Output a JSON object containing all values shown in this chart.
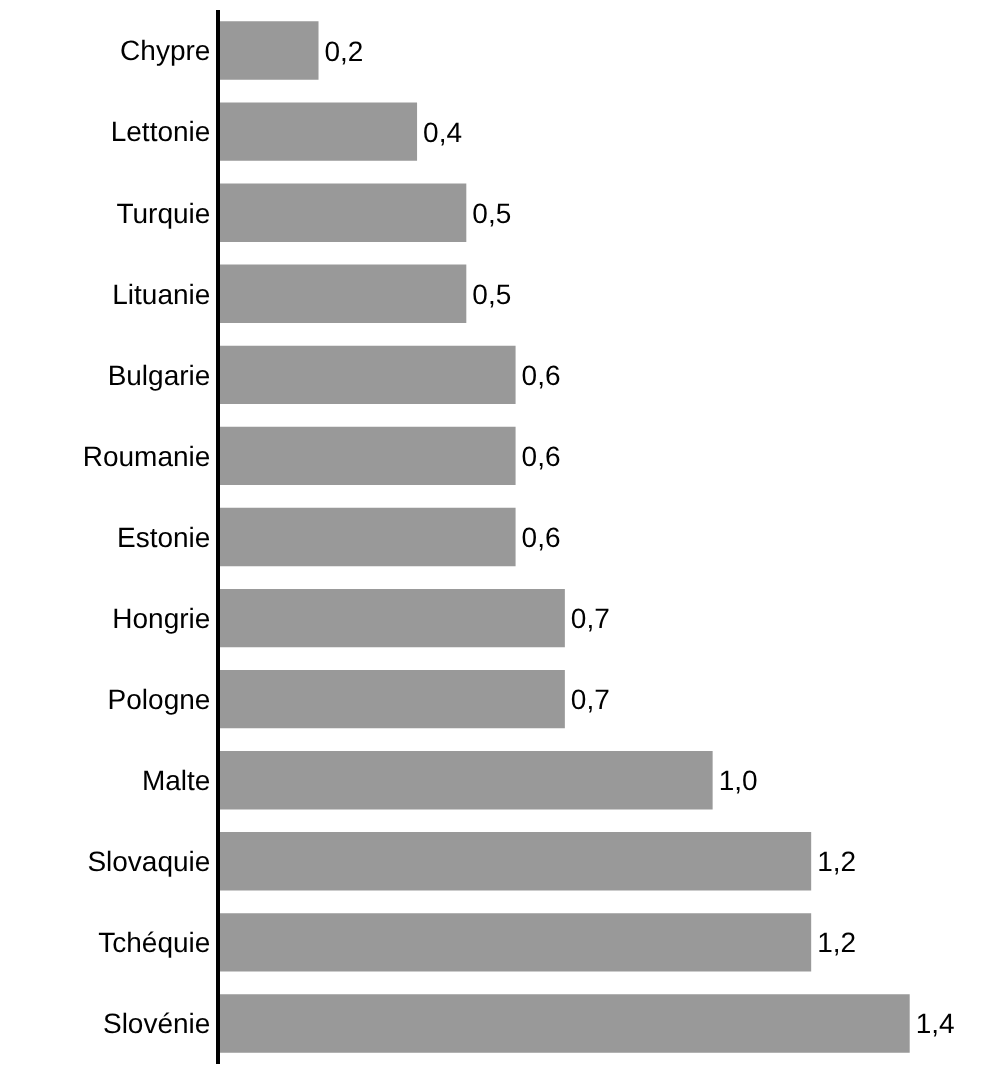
{
  "chart_data": {
    "type": "bar",
    "orientation": "horizontal",
    "categories": [
      "Chypre",
      "Lettonie",
      "Turquie",
      "Lituanie",
      "Bulgarie",
      "Roumanie",
      "Estonie",
      "Hongrie",
      "Pologne",
      "Malte",
      "Slovaquie",
      "Tchéquie",
      "Slovénie"
    ],
    "values": [
      0.2,
      0.4,
      0.5,
      0.5,
      0.6,
      0.6,
      0.6,
      0.7,
      0.7,
      1.0,
      1.2,
      1.2,
      1.4
    ],
    "value_labels": [
      "0,2",
      "0,4",
      "0,5",
      "0,5",
      "0,6",
      "0,6",
      "0,6",
      "0,7",
      "0,7",
      "1,0",
      "1,2",
      "1,2",
      "1,4"
    ],
    "color": "#999999",
    "tick_labels": "y"
  }
}
